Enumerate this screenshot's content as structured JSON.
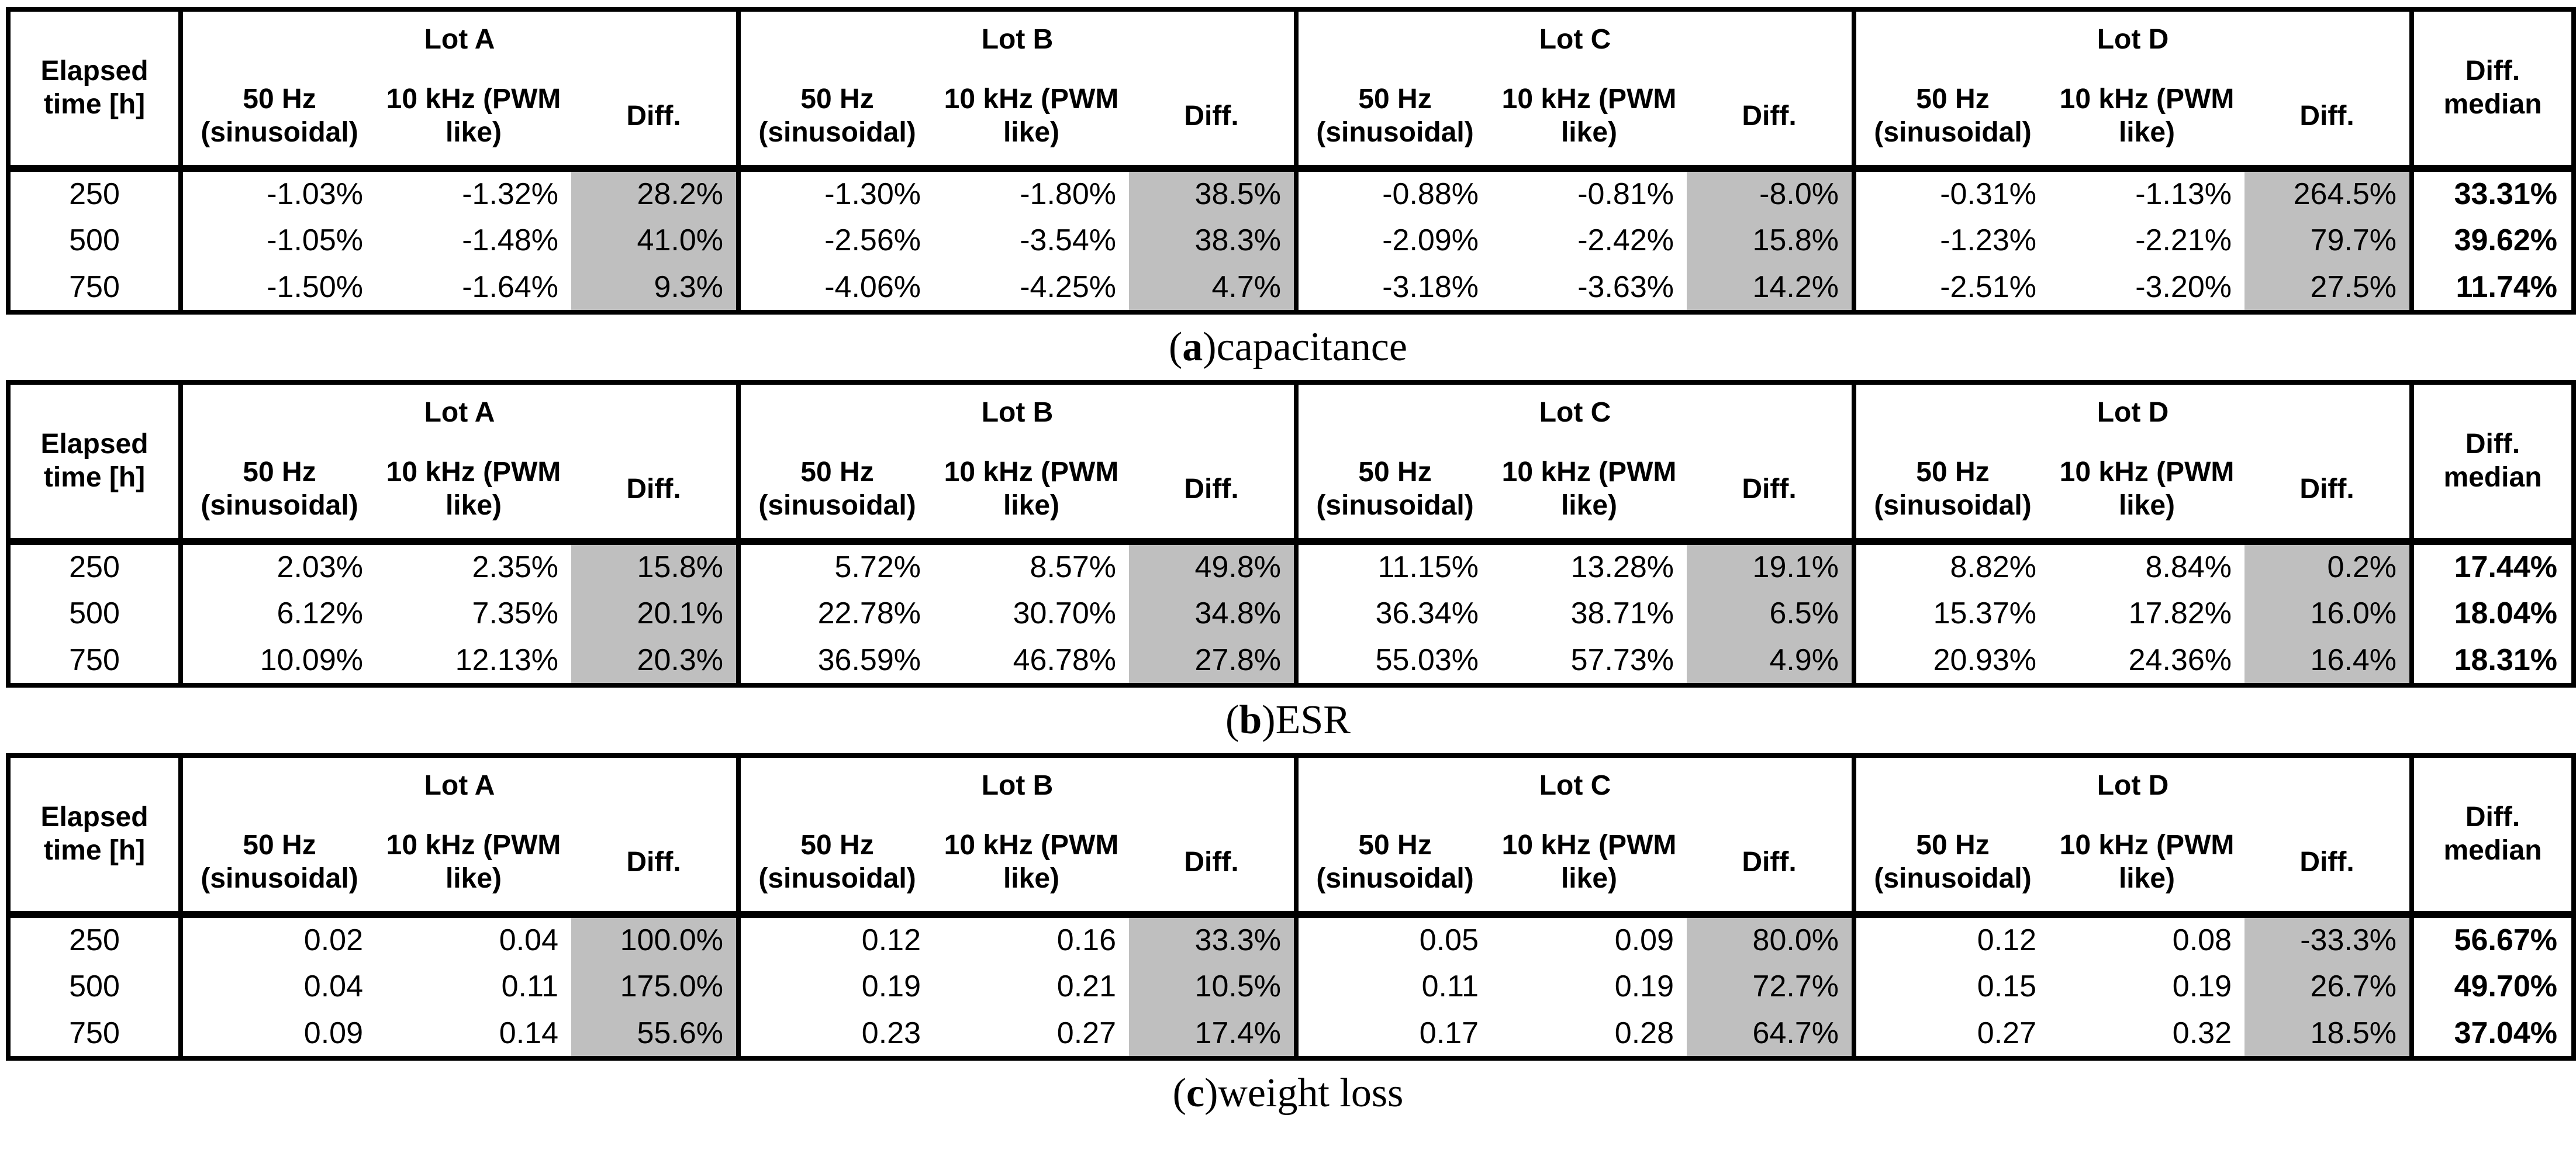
{
  "page": {
    "background": "#ffffff"
  },
  "colors": {
    "diff_column_fill": "#bfbfbf",
    "border": "#000000"
  },
  "header": {
    "elapsed_label": "Elapsed\ntime [h]",
    "lot_labels": [
      "Lot A",
      "Lot B",
      "Lot C",
      "Lot D"
    ],
    "freq_sin_label": "50 Hz\n(sinusoidal)",
    "freq_pwm_label": "10 kHz (PWM\nlike)",
    "diff_label": "Diff.",
    "diff_median_label": "Diff.\nmedian"
  },
  "tables": [
    {
      "caption": {
        "letter": "a",
        "label": "capacitance"
      },
      "rows": [
        {
          "time": "250",
          "lots": [
            [
              "-1.03%",
              "-1.32%",
              "28.2%"
            ],
            [
              "-1.30%",
              "-1.80%",
              "38.5%"
            ],
            [
              "-0.88%",
              "-0.81%",
              "-8.0%"
            ],
            [
              "-0.31%",
              "-1.13%",
              "264.5%"
            ]
          ],
          "median": "33.31%"
        },
        {
          "time": "500",
          "lots": [
            [
              "-1.05%",
              "-1.48%",
              "41.0%"
            ],
            [
              "-2.56%",
              "-3.54%",
              "38.3%"
            ],
            [
              "-2.09%",
              "-2.42%",
              "15.8%"
            ],
            [
              "-1.23%",
              "-2.21%",
              "79.7%"
            ]
          ],
          "median": "39.62%"
        },
        {
          "time": "750",
          "lots": [
            [
              "-1.50%",
              "-1.64%",
              "9.3%"
            ],
            [
              "-4.06%",
              "-4.25%",
              "4.7%"
            ],
            [
              "-3.18%",
              "-3.63%",
              "14.2%"
            ],
            [
              "-2.51%",
              "-3.20%",
              "27.5%"
            ]
          ],
          "median": "11.74%"
        }
      ]
    },
    {
      "caption": {
        "letter": "b",
        "label": "ESR"
      },
      "rows": [
        {
          "time": "250",
          "lots": [
            [
              "2.03%",
              "2.35%",
              "15.8%"
            ],
            [
              "5.72%",
              "8.57%",
              "49.8%"
            ],
            [
              "11.15%",
              "13.28%",
              "19.1%"
            ],
            [
              "8.82%",
              "8.84%",
              "0.2%"
            ]
          ],
          "median": "17.44%"
        },
        {
          "time": "500",
          "lots": [
            [
              "6.12%",
              "7.35%",
              "20.1%"
            ],
            [
              "22.78%",
              "30.70%",
              "34.8%"
            ],
            [
              "36.34%",
              "38.71%",
              "6.5%"
            ],
            [
              "15.37%",
              "17.82%",
              "16.0%"
            ]
          ],
          "median": "18.04%"
        },
        {
          "time": "750",
          "lots": [
            [
              "10.09%",
              "12.13%",
              "20.3%"
            ],
            [
              "36.59%",
              "46.78%",
              "27.8%"
            ],
            [
              "55.03%",
              "57.73%",
              "4.9%"
            ],
            [
              "20.93%",
              "24.36%",
              "16.4%"
            ]
          ],
          "median": "18.31%"
        }
      ]
    },
    {
      "caption": {
        "letter": "c",
        "label": "weight loss"
      },
      "rows": [
        {
          "time": "250",
          "lots": [
            [
              "0.02",
              "0.04",
              "100.0%"
            ],
            [
              "0.12",
              "0.16",
              "33.3%"
            ],
            [
              "0.05",
              "0.09",
              "80.0%"
            ],
            [
              "0.12",
              "0.08",
              "-33.3%"
            ]
          ],
          "median": "56.67%"
        },
        {
          "time": "500",
          "lots": [
            [
              "0.04",
              "0.11",
              "175.0%"
            ],
            [
              "0.19",
              "0.21",
              "10.5%"
            ],
            [
              "0.11",
              "0.19",
              "72.7%"
            ],
            [
              "0.15",
              "0.19",
              "26.7%"
            ]
          ],
          "median": "49.70%"
        },
        {
          "time": "750",
          "lots": [
            [
              "0.09",
              "0.14",
              "55.6%"
            ],
            [
              "0.23",
              "0.27",
              "17.4%"
            ],
            [
              "0.17",
              "0.28",
              "64.7%"
            ],
            [
              "0.27",
              "0.32",
              "18.5%"
            ]
          ],
          "median": "37.04%"
        }
      ]
    }
  ]
}
